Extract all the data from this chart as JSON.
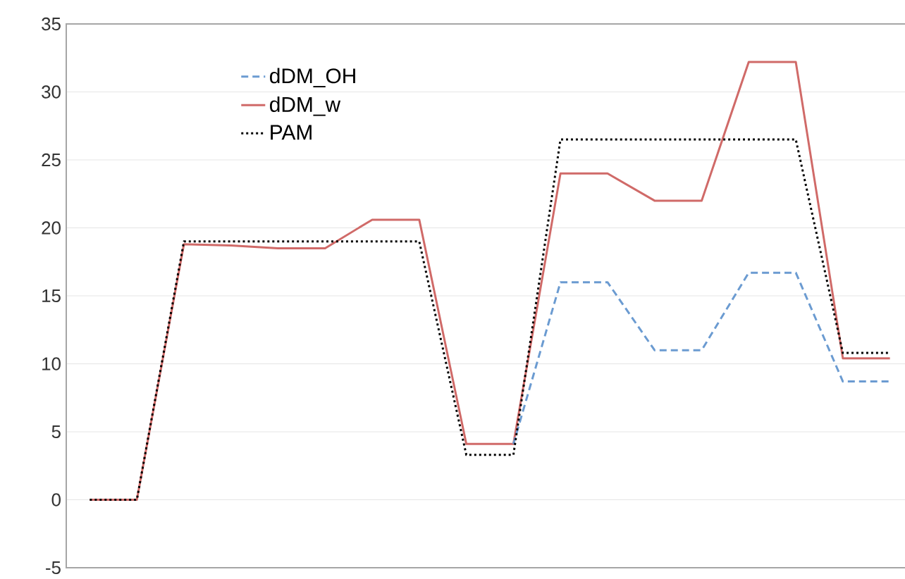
{
  "chart_data": {
    "type": "line",
    "categories": [
      null,
      null,
      null,
      null,
      null,
      null,
      null,
      null,
      null,
      null,
      null,
      null,
      null,
      null,
      null,
      null,
      null,
      null
    ],
    "series": [
      {
        "name": "dDM_OH",
        "color": "#6b9bd1",
        "line_style": "dashed",
        "values": [
          null,
          null,
          null,
          null,
          null,
          null,
          null,
          null,
          null,
          4.1,
          16.0,
          16.0,
          11.0,
          11.0,
          16.7,
          16.7,
          8.7,
          8.7
        ]
      },
      {
        "name": "dDM_w",
        "color": "#d06a68",
        "line_style": "solid",
        "values": [
          0,
          0,
          18.8,
          18.7,
          18.5,
          18.5,
          20.6,
          20.6,
          4.1,
          4.1,
          24.0,
          24.0,
          22.0,
          22.0,
          32.2,
          32.2,
          10.4,
          10.4
        ]
      },
      {
        "name": "PAM",
        "color": "#000000",
        "line_style": "dotted",
        "values": [
          0,
          0,
          19.0,
          19.0,
          19.0,
          19.0,
          19.0,
          19.0,
          3.3,
          3.3,
          26.5,
          26.5,
          26.5,
          26.5,
          26.5,
          26.5,
          10.8,
          10.8
        ]
      }
    ],
    "ylim": [
      -5,
      35
    ],
    "yticks": [
      -5,
      0,
      5,
      10,
      15,
      20,
      25,
      30,
      35
    ],
    "grid": "y",
    "legend": "top left",
    "tick_labels": "y"
  }
}
